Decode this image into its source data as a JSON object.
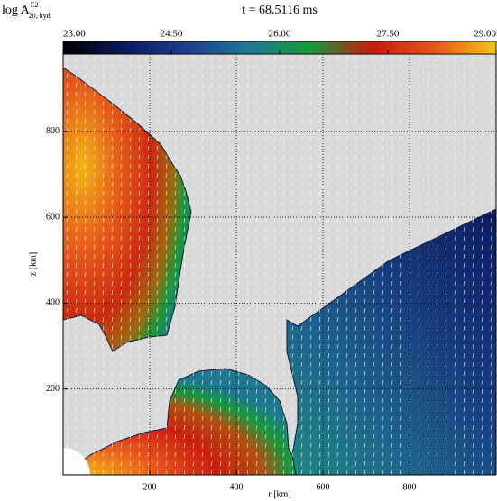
{
  "chart_data": {
    "type": "field",
    "title": "t = 68.5116 ms",
    "quantity": {
      "base": "log A",
      "sup": "E2",
      "sub": "20, hyd"
    },
    "xlabel": "r [km]",
    "ylabel": "z [km]",
    "xlim": [
      0,
      1000
    ],
    "ylim": [
      0,
      980
    ],
    "xticks": [
      200,
      400,
      600,
      800
    ],
    "yticks": [
      200,
      400,
      600,
      800
    ],
    "grid": true,
    "colorbar": {
      "lim": [
        23,
        29
      ],
      "ticks": [
        {
          "value": 23,
          "label": "23.00"
        },
        {
          "value": 24.5,
          "label": "24.50"
        },
        {
          "value": 26,
          "label": "26.00"
        },
        {
          "value": 27.5,
          "label": "27.50"
        },
        {
          "value": 29,
          "label": "29.00"
        }
      ],
      "colors": [
        "#000000",
        "#0b1a5c",
        "#1d3f8e",
        "#1f7890",
        "#16993c",
        "#c8190f",
        "#e8551a",
        "#f2c414"
      ]
    }
  }
}
